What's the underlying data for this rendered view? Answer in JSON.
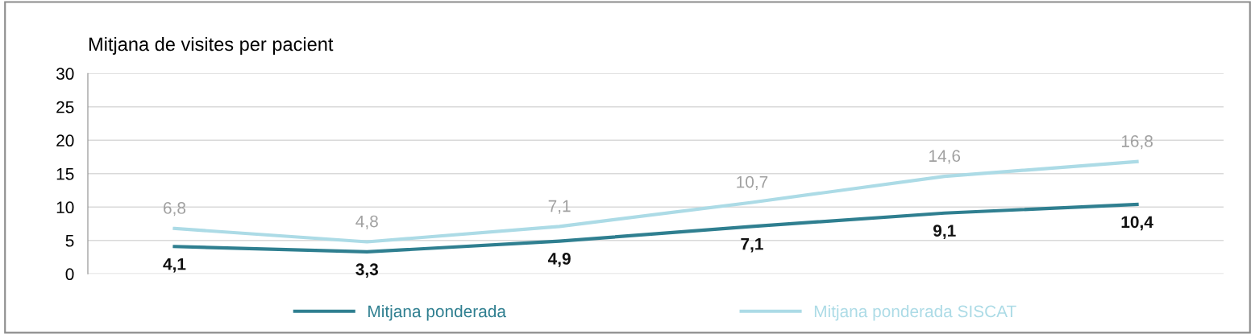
{
  "chart_data": {
    "type": "line",
    "title": "Mitjana de visites per pacient",
    "categories": [
      null,
      null,
      null,
      null,
      null,
      null
    ],
    "series": [
      {
        "name": "Mitjana ponderada",
        "color": "#2f7f90",
        "values": [
          4.1,
          3.3,
          4.9,
          7.1,
          9.1,
          10.4
        ],
        "value_labels": [
          "4,1",
          "3,3",
          "4,9",
          "7,1",
          "9,1",
          "10,4"
        ]
      },
      {
        "name": "Mitjana ponderada SISCAT",
        "color": "#acdbe6",
        "values": [
          6.8,
          4.8,
          7.1,
          10.7,
          14.6,
          16.8
        ],
        "value_labels": [
          "6,8",
          "4,8",
          "7,1",
          "10,7",
          "14,6",
          "16,8"
        ]
      }
    ],
    "ylim": [
      0,
      30
    ],
    "yticks": [
      0,
      5,
      10,
      15,
      20,
      25,
      30
    ],
    "grid": "y",
    "legend": "bottom",
    "marker": "none",
    "line_style": "solid"
  }
}
